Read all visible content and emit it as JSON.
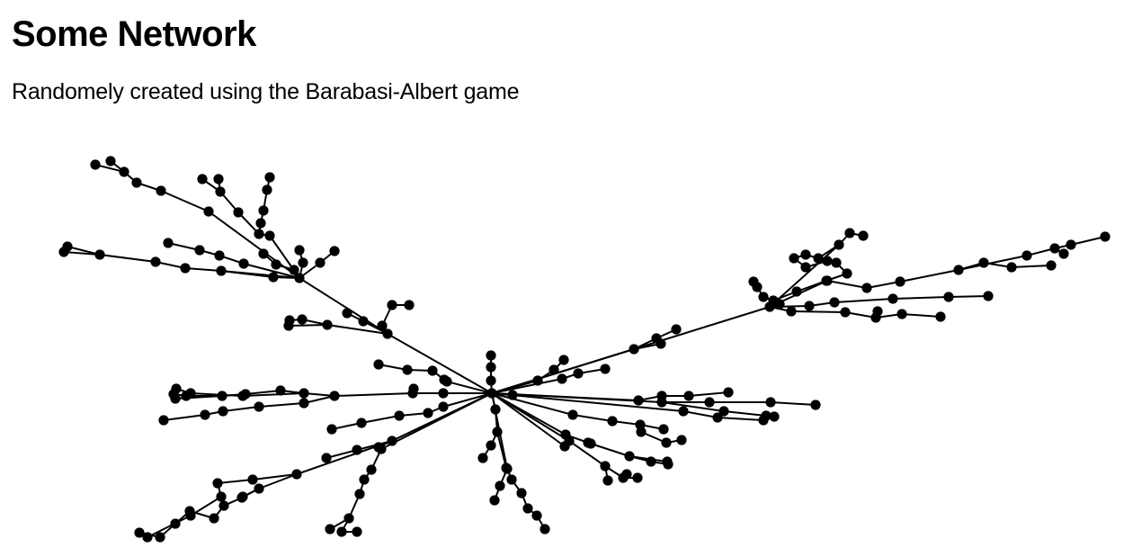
{
  "header": {
    "title": "Some Network",
    "subtitle": "Randomely created using the Barabasi-Albert game"
  },
  "colors": {
    "node": "#000000",
    "edge": "#000000",
    "background": "#ffffff"
  }
}
